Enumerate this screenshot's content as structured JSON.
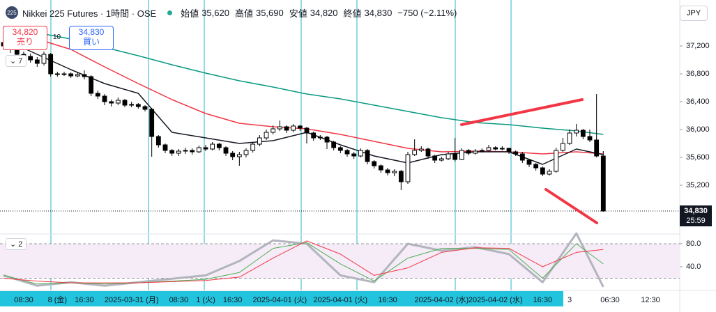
{
  "header": {
    "icon": "225",
    "symbol": "Nikkei 225 Futures · 1時間 · OSE",
    "ohlc": [
      {
        "label": "始値",
        "value": "35,620"
      },
      {
        "label": "高値",
        "value": "35,690"
      },
      {
        "label": "安値",
        "value": "34,820"
      },
      {
        "label": "終値",
        "value": "34,830"
      }
    ],
    "change": "−750 (−2.11%)",
    "sell": {
      "price": "34,820",
      "label": "売り"
    },
    "quantity": "10",
    "buy": {
      "price": "34,830",
      "label": "買い"
    },
    "currency": "JPY",
    "main_count": "7",
    "osc_count": "2"
  },
  "chart_data": {
    "type": "candlestick",
    "categories": [
      null,
      null,
      null,
      "08:30",
      null,
      null,
      null,
      null,
      "8 (金)",
      null,
      null,
      null,
      "16:30",
      null,
      null,
      null,
      null,
      null,
      null,
      "2025-03-31 (月)",
      null,
      null,
      null,
      null,
      null,
      null,
      "08:30",
      null,
      null,
      null,
      "1 (火)",
      null,
      null,
      null,
      "16:30",
      null,
      null,
      null,
      null,
      null,
      null,
      "2025-04-01 (火)",
      null,
      null,
      null,
      null,
      null,
      null,
      null,
      null,
      "2025-04-01 (火)",
      null,
      null,
      null,
      null,
      null,
      null,
      "16:30",
      null,
      null,
      null,
      null,
      null,
      null,
      null,
      "2025-04-02 (水)",
      null,
      null,
      null,
      null,
      null,
      null,
      null,
      "2025-04-02 (水)",
      null,
      null,
      null,
      null,
      null,
      null,
      "16:30",
      null,
      null,
      null,
      "3",
      null,
      null,
      null,
      null,
      null,
      "06:30",
      null,
      null,
      null,
      null,
      null,
      "12:30"
    ],
    "open": [
      37250,
      37200,
      37150,
      37080,
      37050,
      37000,
      36950,
      37080,
      36800,
      36790,
      36800,
      36770,
      36790,
      36760,
      36520,
      36480,
      36400,
      36380,
      36420,
      36350,
      36360,
      36330,
      36290,
      35900,
      35780,
      35700,
      35660,
      35690,
      35700,
      35680,
      35740,
      35720,
      35790,
      35740,
      35660,
      35610,
      35640,
      35700,
      35790,
      35880,
      35960,
      36010,
      36040,
      35990,
      36050,
      36020,
      35950,
      35880,
      35890,
      35820,
      35740,
      35700,
      35650,
      35620,
      35700,
      35540,
      35480,
      35420,
      35380,
      35400,
      35250,
      35640,
      35700,
      35720,
      35620,
      35560,
      35580,
      35650,
      35570,
      35700,
      35660,
      35690,
      35700,
      35740,
      35720,
      35730,
      35680,
      35650,
      35560,
      35500,
      35450,
      35360,
      35400,
      35700,
      35800,
      35950,
      35990,
      35900,
      35850,
      35620,
      null,
      null,
      null,
      null,
      null,
      null,
      null
    ],
    "high": [
      37290,
      37230,
      37180,
      37120,
      37090,
      37040,
      37120,
      37100,
      36830,
      36830,
      36820,
      36830,
      36850,
      36780,
      36560,
      36510,
      36430,
      36460,
      36440,
      36400,
      36380,
      36350,
      36310,
      35920,
      35800,
      35720,
      35720,
      35740,
      35730,
      35770,
      35780,
      35820,
      35810,
      35760,
      35690,
      35680,
      35730,
      35820,
      35920,
      36000,
      36060,
      36130,
      36060,
      36080,
      36070,
      36040,
      35970,
      35920,
      35910,
      35840,
      35760,
      35720,
      35680,
      35730,
      35720,
      35560,
      35500,
      35450,
      35430,
      35420,
      35680,
      35860,
      35760,
      35740,
      35640,
      35610,
      35680,
      35880,
      35730,
      35720,
      35720,
      35730,
      35780,
      35760,
      35760,
      35740,
      35700,
      35680,
      35580,
      35520,
      35470,
      35430,
      35740,
      35880,
      36000,
      36080,
      36010,
      36000,
      36510,
      35690,
      null,
      null,
      null,
      null,
      null,
      null,
      null
    ],
    "low": [
      37150,
      37100,
      37040,
      37000,
      36960,
      36900,
      36920,
      36760,
      36760,
      36770,
      36740,
      36750,
      36720,
      36480,
      36440,
      36350,
      36330,
      36350,
      36320,
      36320,
      36300,
      36260,
      35610,
      35740,
      35660,
      35620,
      35620,
      35650,
      35640,
      35660,
      35690,
      35700,
      35700,
      35620,
      35560,
      35480,
      35600,
      35670,
      35760,
      35850,
      35930,
      35980,
      35950,
      35960,
      35980,
      35800,
      35840,
      35850,
      35720,
      35700,
      35660,
      35610,
      35580,
      35600,
      35500,
      35440,
      35380,
      35340,
      35330,
      35130,
      35220,
      35620,
      35680,
      35580,
      35520,
      35540,
      35560,
      35540,
      35560,
      35630,
      35640,
      35670,
      35680,
      35700,
      35700,
      35650,
      35620,
      35520,
      35460,
      35410,
      35330,
      35340,
      35380,
      35680,
      35780,
      35900,
      35860,
      35820,
      35600,
      34820,
      null,
      null,
      null,
      null,
      null,
      null,
      null
    ],
    "close": [
      37200,
      37150,
      37080,
      37050,
      37000,
      36950,
      37080,
      36800,
      36790,
      36800,
      36770,
      36790,
      36760,
      36520,
      36480,
      36400,
      36380,
      36420,
      36350,
      36360,
      36330,
      36290,
      35900,
      35780,
      35700,
      35660,
      35690,
      35700,
      35680,
      35740,
      35720,
      35790,
      35740,
      35660,
      35610,
      35640,
      35700,
      35790,
      35880,
      35960,
      36010,
      36040,
      35990,
      36050,
      36020,
      35950,
      35880,
      35890,
      35820,
      35740,
      35700,
      35650,
      35620,
      35700,
      35540,
      35480,
      35420,
      35380,
      35400,
      35250,
      35640,
      35700,
      35720,
      35620,
      35560,
      35580,
      35650,
      35570,
      35700,
      35660,
      35690,
      35700,
      35740,
      35720,
      35730,
      35680,
      35650,
      35560,
      35500,
      35450,
      35360,
      35400,
      35700,
      35800,
      35950,
      35990,
      35900,
      35850,
      35620,
      34830,
      null,
      null,
      null,
      null,
      null,
      null,
      null
    ],
    "up_color": "#ffffff",
    "down_color": "#000000",
    "ylim": [
      34540,
      37860
    ],
    "yticks": [
      {
        "value": 35200,
        "label": "35,200"
      },
      {
        "value": 35600,
        "label": "35,600"
      },
      {
        "value": 36000,
        "label": "36,000"
      },
      {
        "value": 36400,
        "label": "36,400"
      },
      {
        "value": 36800,
        "label": "36,800"
      },
      {
        "value": 37200,
        "label": "37,200"
      }
    ],
    "last": {
      "value": 34830,
      "label": "34,830",
      "countdown": "25:59"
    },
    "lines": [
      {
        "color": "#089981",
        "x": [
          0,
          5,
          10,
          15,
          20,
          25,
          30,
          35,
          40,
          45,
          50,
          55,
          60,
          65,
          70,
          75,
          80,
          85,
          89
        ],
        "values": [
          37480,
          37390,
          37300,
          37180,
          37060,
          36930,
          36810,
          36700,
          36610,
          36510,
          36440,
          36350,
          36260,
          36170,
          36100,
          36070,
          36020,
          35980,
          35930
        ]
      },
      {
        "color": "#f23645",
        "x": [
          0,
          5,
          10,
          15,
          20,
          25,
          30,
          35,
          40,
          45,
          50,
          55,
          60,
          65,
          70,
          75,
          80,
          85,
          89
        ],
        "values": [
          37470,
          37300,
          37150,
          36900,
          36660,
          36430,
          36230,
          36090,
          36040,
          36010,
          35930,
          35830,
          35730,
          35680,
          35690,
          35680,
          35650,
          35680,
          35650
        ]
      },
      {
        "color": "#131722",
        "x": [
          0,
          5,
          10,
          15,
          20,
          25,
          30,
          35,
          40,
          45,
          50,
          55,
          60,
          65,
          70,
          75,
          80,
          85,
          89
        ],
        "values": [
          37300,
          37080,
          36860,
          36660,
          36520,
          35960,
          35880,
          35800,
          35840,
          35960,
          35780,
          35620,
          35520,
          35640,
          35680,
          35680,
          35500,
          35720,
          35640
        ]
      }
    ],
    "oscillator": {
      "ylim": [
        0,
        100
      ],
      "yticks": [
        {
          "value": 80,
          "label": "80.0"
        },
        {
          "value": 40,
          "label": "40.0"
        }
      ],
      "band": [
        20,
        80
      ],
      "band_color": "#f5ecf7",
      "lines": [
        {
          "color": "#b2b5be",
          "width": 3,
          "x": [
            0,
            5,
            10,
            15,
            20,
            25,
            30,
            35,
            40,
            45,
            50,
            55,
            60,
            65,
            70,
            75,
            80,
            85,
            89
          ],
          "values": [
            25,
            7,
            13,
            7,
            13,
            19,
            25,
            50,
            86,
            80,
            25,
            13,
            80,
            68,
            74,
            62,
            13,
            98,
            5
          ]
        },
        {
          "color": "#4caf50",
          "width": 1,
          "x": [
            0,
            5,
            10,
            15,
            20,
            25,
            30,
            35,
            40,
            45,
            50,
            55,
            60,
            65,
            70,
            75,
            80,
            85,
            89
          ],
          "values": [
            25,
            10,
            12,
            10,
            12,
            15,
            18,
            30,
            72,
            82,
            45,
            15,
            55,
            72,
            72,
            70,
            20,
            80,
            45
          ]
        },
        {
          "color": "#f23645",
          "width": 1,
          "x": [
            0,
            5,
            10,
            15,
            20,
            25,
            30,
            35,
            40,
            45,
            50,
            55,
            60,
            65,
            70,
            75,
            80,
            85,
            89
          ],
          "values": [
            20,
            15,
            12,
            12,
            12,
            14,
            16,
            22,
            55,
            85,
            62,
            25,
            38,
            65,
            73,
            72,
            40,
            65,
            70
          ]
        }
      ]
    }
  }
}
